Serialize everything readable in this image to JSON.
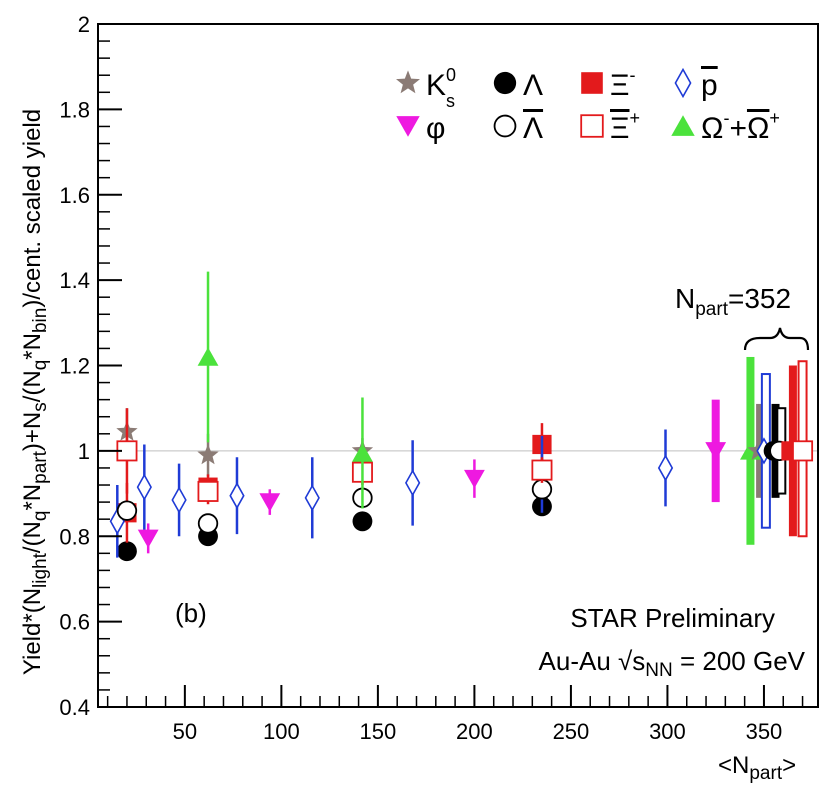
{
  "chart_data": {
    "type": "scatter",
    "title": "",
    "xlabel": "<N_part>",
    "ylabel": "Yield*(N_light/(N_q*N_part)+N_s/(N_q*N_bin))/cent. scaled yield",
    "xlim": [
      5,
      378
    ],
    "ylim": [
      0.4,
      2.0
    ],
    "x_ticks": [
      50,
      100,
      150,
      200,
      250,
      300,
      350
    ],
    "y_ticks": [
      0.4,
      0.6,
      0.8,
      1.0,
      1.2,
      1.4,
      1.6,
      1.8,
      2.0
    ],
    "reference_line": 1.0,
    "panel_label": "(b)",
    "annotations": {
      "experiment": "STAR Preliminary",
      "system_prefix": "Au-Au √s",
      "system_sub": "NN",
      "system_suffix": " = 200 GeV",
      "npart_base": "N",
      "npart_sub": "part",
      "npart_value": "=352"
    },
    "series": [
      {
        "name": "K0s",
        "label_base": "K",
        "label_sup": "0",
        "label_sub": "s",
        "marker": "star",
        "color": "#8b7b75",
        "points": [
          {
            "x": 20,
            "y": 1.045,
            "err": 0.055
          },
          {
            "x": 62,
            "y": 0.99,
            "err": 0.05
          },
          {
            "x": 142,
            "y": 1.0,
            "err": 0.03
          }
        ]
      },
      {
        "name": "Lambda",
        "label_base": "Λ",
        "marker": "circle-filled",
        "color": "#000000",
        "points": [
          {
            "x": 20,
            "y": 0.765,
            "err": 0.02
          },
          {
            "x": 62,
            "y": 0.8,
            "err": 0.015
          },
          {
            "x": 142,
            "y": 0.835,
            "err": 0.015
          },
          {
            "x": 235,
            "y": 0.87,
            "err": 0.02
          }
        ]
      },
      {
        "name": "Xi-",
        "label_base": "Ξ",
        "label_sup": "-",
        "marker": "square-filled",
        "color": "#e31a1c",
        "points": [
          {
            "x": 20,
            "y": 0.855,
            "err": 0.07
          },
          {
            "x": 62,
            "y": 0.915,
            "err": 0.03
          },
          {
            "x": 142,
            "y": 0.955,
            "err": 0.03
          },
          {
            "x": 235,
            "y": 1.015,
            "err": 0.05
          }
        ]
      },
      {
        "name": "anti-proton",
        "label_base": "p",
        "marker": "diamond-open",
        "color": "#1f3bd6",
        "points": [
          {
            "x": 15,
            "y": 0.835,
            "err": 0.085
          },
          {
            "x": 29,
            "y": 0.915,
            "err": 0.1
          },
          {
            "x": 47,
            "y": 0.885,
            "err": 0.085
          },
          {
            "x": 77,
            "y": 0.895,
            "err": 0.09
          },
          {
            "x": 116,
            "y": 0.89,
            "err": 0.095
          },
          {
            "x": 168,
            "y": 0.925,
            "err": 0.1
          },
          {
            "x": 235,
            "y": 0.945,
            "err": 0.09
          },
          {
            "x": 299,
            "y": 0.96,
            "err": 0.09
          }
        ]
      },
      {
        "name": "phi",
        "label_base": "φ",
        "marker": "triangle-down",
        "color": "#ee19e0",
        "points": [
          {
            "x": 31,
            "y": 0.795,
            "err": 0.035
          },
          {
            "x": 94,
            "y": 0.88,
            "err": 0.03
          },
          {
            "x": 200,
            "y": 0.935,
            "err": 0.045
          }
        ]
      },
      {
        "name": "anti-Lambda",
        "label_base": "Λ",
        "marker": "circle-open",
        "color": "#000000",
        "points": [
          {
            "x": 20,
            "y": 0.86,
            "err": 0.02
          },
          {
            "x": 62,
            "y": 0.83,
            "err": 0.015
          },
          {
            "x": 142,
            "y": 0.89,
            "err": 0.02
          },
          {
            "x": 235,
            "y": 0.91,
            "err": 0.02
          }
        ]
      },
      {
        "name": "anti-Xi+",
        "label_base": "Ξ",
        "label_sup": "+",
        "marker": "square-open",
        "color": "#e31a1c",
        "points": [
          {
            "x": 20,
            "y": 1.0,
            "err": 0.1
          },
          {
            "x": 62,
            "y": 0.905,
            "err": 0.03
          },
          {
            "x": 142,
            "y": 0.95,
            "err": 0.03
          },
          {
            "x": 235,
            "y": 0.955,
            "err": 0.03
          }
        ]
      },
      {
        "name": "Omega",
        "label_base": "Ω",
        "label_sup": "-",
        "label_mid": "+",
        "label_base2": "Ω",
        "label_sup2": "+",
        "marker": "triangle-up",
        "color": "#4be23c",
        "points": [
          {
            "x": 62,
            "y": 1.22,
            "err": 0.2
          },
          {
            "x": 142,
            "y": 0.995,
            "err": 0.13
          }
        ]
      }
    ],
    "systematic_bars": [
      {
        "x": 325,
        "y": 1.0,
        "low": 0.88,
        "high": 1.12,
        "color": "#ee19e0"
      },
      {
        "x": 343,
        "y": 1.0,
        "low": 0.78,
        "high": 1.22,
        "color": "#4be23c"
      },
      {
        "x": 348,
        "y": 1.0,
        "low": 0.89,
        "high": 1.11,
        "color": "#8b7b75"
      },
      {
        "x": 351,
        "y": 1.0,
        "low": 0.82,
        "high": 1.18,
        "color": "#1f3bd6",
        "open": true
      },
      {
        "x": 356,
        "y": 1.0,
        "low": 0.89,
        "high": 1.11,
        "color": "#000000"
      },
      {
        "x": 359,
        "y": 1.0,
        "low": 0.9,
        "high": 1.1,
        "color": "#000000",
        "open": true
      },
      {
        "x": 365,
        "y": 1.0,
        "low": 0.8,
        "high": 1.2,
        "color": "#e31a1c"
      },
      {
        "x": 370,
        "y": 1.0,
        "low": 0.8,
        "high": 1.21,
        "color": "#e31a1c",
        "open": true
      }
    ],
    "ref_markers": [
      {
        "x": 343,
        "marker": "triangle-up",
        "color": "#4be23c"
      },
      {
        "x": 347,
        "marker": "star",
        "color": "#8b7b75"
      },
      {
        "x": 350,
        "marker": "diamond-open",
        "color": "#1f3bd6"
      },
      {
        "x": 355,
        "marker": "circle-filled",
        "color": "#000000"
      },
      {
        "x": 358,
        "marker": "circle-open",
        "color": "#000000"
      },
      {
        "x": 364,
        "marker": "square-filled",
        "color": "#e31a1c"
      },
      {
        "x": 370,
        "marker": "square-open",
        "color": "#e31a1c"
      },
      {
        "x": 325,
        "marker": "triangle-down",
        "color": "#ee19e0"
      }
    ]
  }
}
